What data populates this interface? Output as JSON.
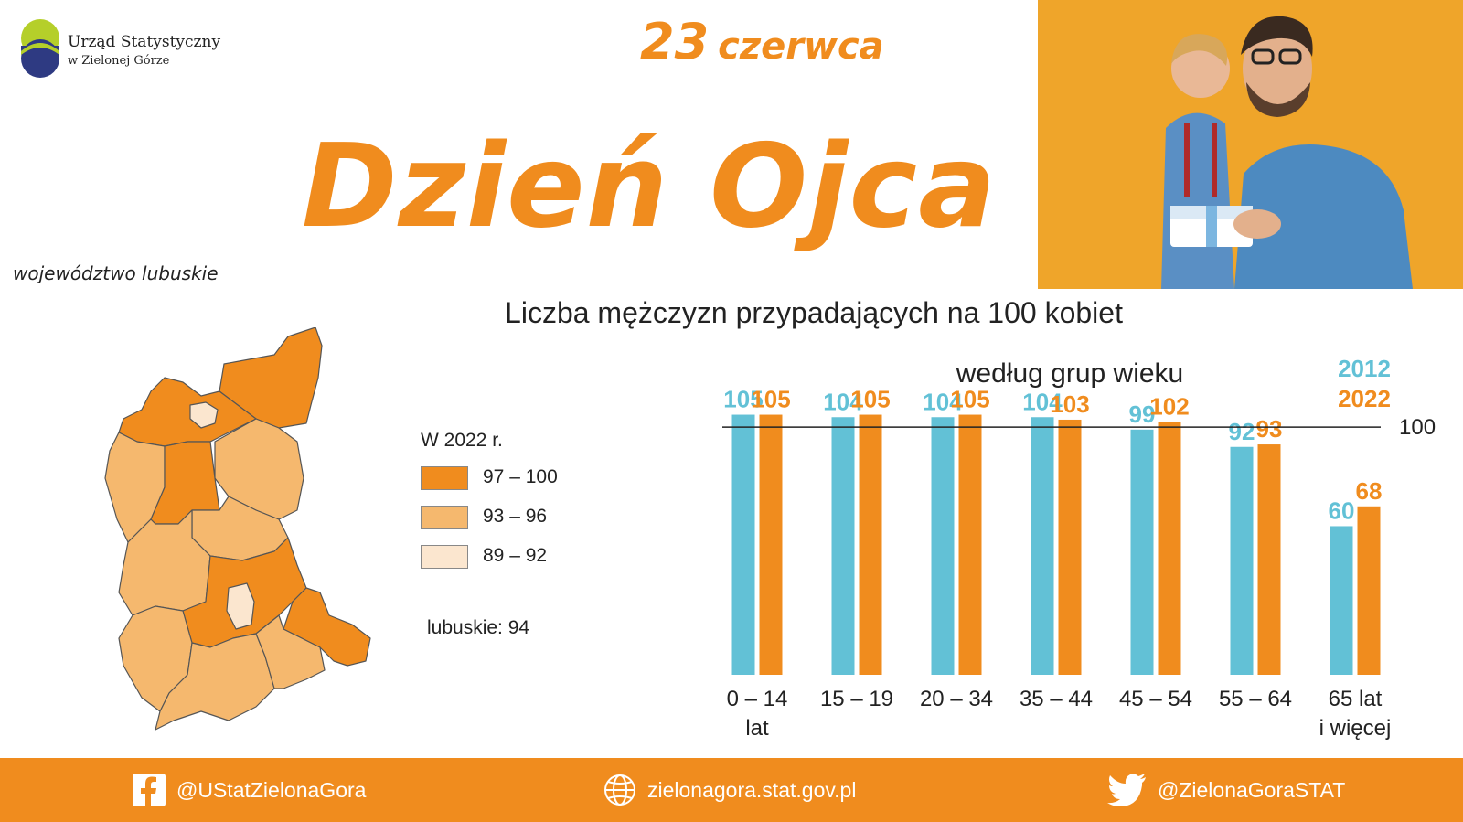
{
  "header": {
    "logo_line1": "Urząd Statystyczny",
    "logo_line2": "w Zielonej Górze",
    "date_day": "23",
    "date_month": "czerwca",
    "title": "Dzień Ojca",
    "region": "województwo lubuskie",
    "subtitle": "Liczba mężczyzn przypadających na 100 kobiet"
  },
  "colors": {
    "orange": "#f08c1e",
    "blue": "#62c1d6",
    "map_dark": "#f08c1e",
    "map_mid": "#f5b86e",
    "map_light": "#fbe6cf"
  },
  "legend": {
    "title": "W 2022 r.",
    "items": [
      "97 – 100",
      "93 – 96",
      "89 – 92"
    ],
    "total": "lubuskie: 94"
  },
  "chart_data": {
    "type": "bar",
    "title": "według grup wieku",
    "categories": [
      [
        "0 – 14",
        "lat"
      ],
      [
        "15 – 19"
      ],
      [
        "20 – 34"
      ],
      [
        "35 – 44"
      ],
      [
        "45 – 54"
      ],
      [
        "55 – 64"
      ],
      [
        "65 lat",
        "i więcej"
      ]
    ],
    "series": [
      {
        "name": "2012",
        "color": "#62c1d6",
        "values": [
          105,
          104,
          104,
          104,
          99,
          92,
          60
        ]
      },
      {
        "name": "2022",
        "color": "#f08c1e",
        "values": [
          105,
          105,
          105,
          103,
          102,
          93,
          68
        ]
      }
    ],
    "reference_line": {
      "value": 100,
      "label": "100"
    },
    "ylim": [
      0,
      110
    ]
  },
  "footer": {
    "facebook": "@UStatZielonaGora",
    "website": "zielonagora.stat.gov.pl",
    "twitter": "@ZielonaGoraSTAT"
  },
  "icons": {
    "facebook": "facebook-icon",
    "globe": "globe-icon",
    "twitter": "twitter-bird-icon"
  }
}
